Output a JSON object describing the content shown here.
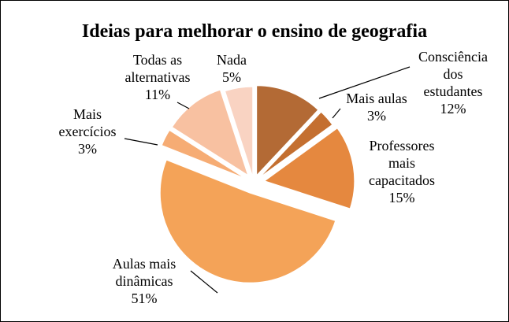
{
  "chart_data": {
    "type": "pie",
    "title": "Ideias para melhorar o ensino de geografia",
    "start_angle_deg": 0,
    "direction": "clockwise",
    "slices": [
      {
        "name": "Consciência dos estudantes",
        "label_lines": [
          "Consciência",
          "dos",
          "estudantes"
        ],
        "value": 12,
        "value_label": "12%",
        "color": "#B36A35",
        "exploded": true
      },
      {
        "name": "Mais aulas",
        "label_lines": [
          "Mais aulas"
        ],
        "value": 3,
        "value_label": "3%",
        "color": "#C46F30",
        "exploded": true
      },
      {
        "name": "Professores mais capacitados",
        "label_lines": [
          "Professores",
          "mais",
          "capacitados"
        ],
        "value": 15,
        "value_label": "15%",
        "color": "#E5883F",
        "exploded": true
      },
      {
        "name": "Aulas mais dinâmicas",
        "label_lines": [
          "Aulas mais",
          "dinâmicas"
        ],
        "value": 51,
        "value_label": "51%",
        "color": "#F4A358",
        "exploded": true
      },
      {
        "name": "Mais exercícios",
        "label_lines": [
          "Mais",
          "exercícios"
        ],
        "value": 3,
        "value_label": "3%",
        "color": "#F6AC74",
        "exploded": true
      },
      {
        "name": "Todas as alternativas",
        "label_lines": [
          "Todas as",
          "alternativas"
        ],
        "value": 11,
        "value_label": "11%",
        "color": "#F8C1A1",
        "exploded": true
      },
      {
        "name": "Nada",
        "label_lines": [
          "Nada"
        ],
        "value": 5,
        "value_label": "5%",
        "color": "#F9D3C2",
        "exploded": true
      }
    ],
    "legend": "none",
    "labels": "outside with leader lines"
  }
}
